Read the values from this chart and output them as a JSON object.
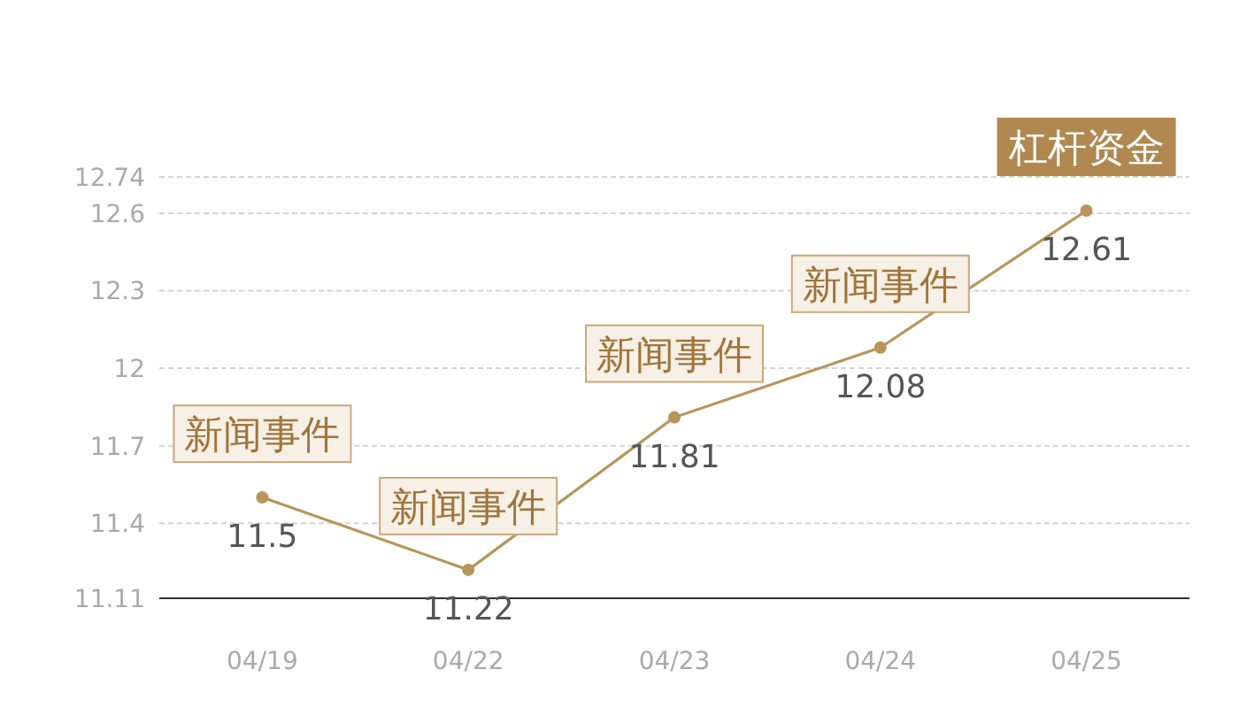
{
  "chart_data": {
    "type": "line",
    "categories": [
      "04/19",
      "04/22",
      "04/23",
      "04/24",
      "04/25"
    ],
    "series": [
      {
        "color": "#b8955a",
        "values": [
          11.5,
          11.22,
          11.81,
          12.08,
          12.61
        ]
      }
    ],
    "ylim": [
      11.11,
      12.74
    ],
    "yticks": [
      11.11,
      11.4,
      11.7,
      12,
      12.3,
      12.6,
      12.74
    ],
    "grid": "y",
    "marker": "circle",
    "line_style": "solid",
    "data_labels": true,
    "annotations": [
      {
        "text": "新闻事件",
        "x": "04/19",
        "y": 11.5
      },
      {
        "text": "新闻事件",
        "x": "04/22",
        "y": 11.22
      },
      {
        "text": "新闻事件",
        "x": "04/23",
        "y": 11.81
      },
      {
        "text": "新闻事件",
        "x": "04/24",
        "y": 12.08
      },
      {
        "text": "杠杆资金",
        "x": "04/25",
        "y": 12.61
      }
    ]
  }
}
